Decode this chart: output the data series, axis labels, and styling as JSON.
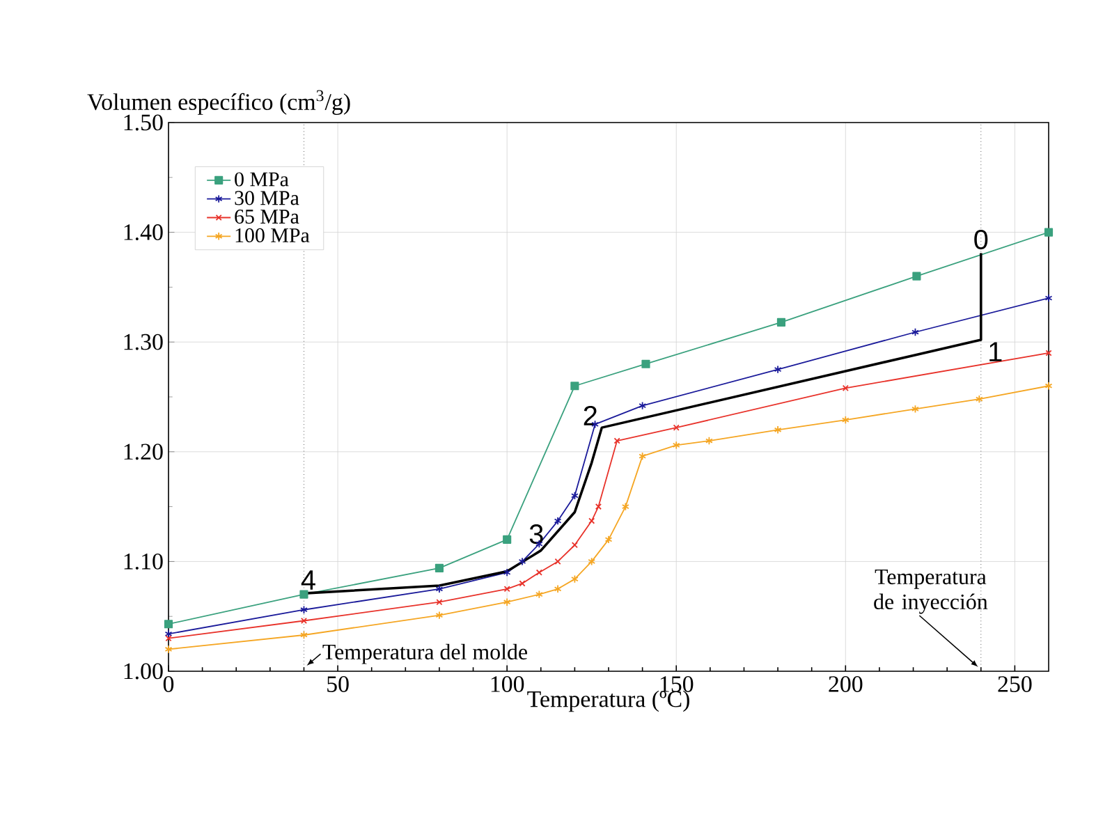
{
  "chart_data": {
    "type": "line",
    "xlabel": "Temperatura (ºC)",
    "ylabel": "Volumen específico (cm$^{3}$/g)",
    "xlim": [
      0,
      260
    ],
    "xticks": [
      0,
      50,
      100,
      150,
      200,
      250
    ],
    "ylim": [
      1.0,
      1.5
    ],
    "yticks": [
      {
        "value": 1.0,
        "label": "1.00"
      },
      {
        "value": 1.1,
        "label": "1.10"
      },
      {
        "value": 1.2,
        "label": "1.20"
      },
      {
        "value": 1.3,
        "label": "1.30"
      },
      {
        "value": 1.4,
        "label": "1.40"
      },
      {
        "value": 1.5,
        "label": "1.50"
      }
    ],
    "grid": true,
    "legend": "top left",
    "series": [
      {
        "name": "0 MPa",
        "color": "#3aa17e",
        "marker": "square",
        "x": [
          0,
          40,
          80,
          100,
          120,
          141,
          181,
          221,
          260
        ],
        "values": [
          1.043,
          1.07,
          1.094,
          1.12,
          1.26,
          1.28,
          1.318,
          1.36,
          1.4
        ]
      },
      {
        "name": "30 MPa",
        "color": "#1a1a9a",
        "marker": "cross",
        "x": [
          0,
          40,
          80,
          100,
          104.5,
          109.5,
          115,
          120,
          126,
          140,
          180,
          220.6,
          260
        ],
        "values": [
          1.034,
          1.056,
          1.075,
          1.09,
          1.1,
          1.116,
          1.137,
          1.16,
          1.225,
          1.242,
          1.275,
          1.309,
          1.34
        ]
      },
      {
        "name": "65 MPa",
        "color": "#e8322a",
        "marker": "cross",
        "x": [
          0,
          40,
          80,
          100,
          104.5,
          109.5,
          115,
          120,
          125,
          127,
          132.5,
          150,
          200,
          260
        ],
        "values": [
          1.03,
          1.046,
          1.063,
          1.075,
          1.08,
          1.09,
          1.1,
          1.115,
          1.137,
          1.15,
          1.21,
          1.222,
          1.258,
          1.29
        ]
      },
      {
        "name": "100 MPa",
        "color": "#f5a623",
        "marker": "cross",
        "x": [
          0,
          40,
          80,
          100,
          109.5,
          115,
          120,
          125,
          130,
          135,
          140,
          150,
          159.7,
          180,
          200,
          220.6,
          239.5,
          260
        ],
        "values": [
          1.02,
          1.033,
          1.051,
          1.063,
          1.07,
          1.075,
          1.084,
          1.1,
          1.12,
          1.15,
          1.196,
          1.206,
          1.21,
          1.22,
          1.229,
          1.239,
          1.248,
          1.26
        ]
      },
      {
        "color": "#000000",
        "marker": "none",
        "x": [
          40,
          80,
          100,
          110,
          120,
          125,
          128,
          240,
          240
        ],
        "values": [
          1.071,
          1.078,
          1.091,
          1.11,
          1.145,
          1.19,
          1.222,
          1.302,
          1.381
        ]
      }
    ],
    "annotations": [
      {
        "text": "0",
        "x": 240,
        "y": 1.381
      },
      {
        "text": "1",
        "x": 240,
        "y": 1.302
      },
      {
        "text": "2",
        "x": 128,
        "y": 1.222
      },
      {
        "text": "3",
        "x": 110,
        "y": 1.11
      },
      {
        "text": "4",
        "x": 40,
        "y": 1.071
      }
    ],
    "ref_lines": [
      {
        "axis": "x",
        "value": 40,
        "label": "Temperatura del molde",
        "line_style": "dotted",
        "color": "#000000"
      },
      {
        "axis": "x",
        "value": 240,
        "label": "Temperatura de inyección",
        "line_style": "dotted",
        "color": "#000000"
      }
    ]
  }
}
